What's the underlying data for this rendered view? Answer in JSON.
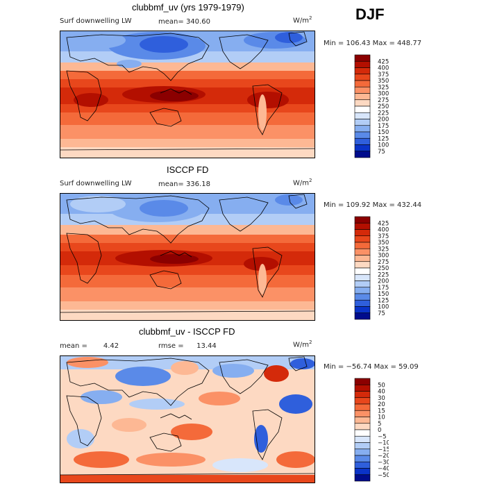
{
  "season": "DJF",
  "panels": [
    {
      "title": "clubbmf_uv (yrs 1979-1979)",
      "variable": "Surf downwelling LW",
      "mean_label": "mean=",
      "mean_value": "340.60",
      "units_base": "W/m",
      "units_exp": "2",
      "minmax": "Min = 106.43 Max = 448.77",
      "colorbar_labels": [
        "425",
        "400",
        "375",
        "350",
        "325",
        "300",
        "275",
        "250",
        "225",
        "200",
        "175",
        "150",
        "125",
        "100",
        "75"
      ],
      "colorbar_colors": [
        "#8b0000",
        "#b30f00",
        "#d42a0a",
        "#e8471c",
        "#f46a3a",
        "#fb9166",
        "#fdb894",
        "#fdd9c2",
        "#ffffff",
        "#d8e6fb",
        "#b2cdf6",
        "#86aef0",
        "#5a8ae8",
        "#2f5fdc",
        "#0a33c8",
        "#000c8c"
      ]
    },
    {
      "title": "ISCCP FD",
      "variable": "Surf downwelling LW",
      "mean_label": "mean=",
      "mean_value": "336.18",
      "units_base": "W/m",
      "units_exp": "2",
      "minmax": "Min = 109.92 Max = 432.44",
      "colorbar_labels": [
        "425",
        "400",
        "375",
        "350",
        "325",
        "300",
        "275",
        "250",
        "225",
        "200",
        "175",
        "150",
        "125",
        "100",
        "75"
      ],
      "colorbar_colors": [
        "#8b0000",
        "#b30f00",
        "#d42a0a",
        "#e8471c",
        "#f46a3a",
        "#fb9166",
        "#fdb894",
        "#fdd9c2",
        "#ffffff",
        "#d8e6fb",
        "#b2cdf6",
        "#86aef0",
        "#5a8ae8",
        "#2f5fdc",
        "#0a33c8",
        "#000c8c"
      ]
    },
    {
      "title": "clubbmf_uv - ISCCP FD",
      "mean_label": "mean =",
      "mean_value": "4.42",
      "rmse_label": "rmse =",
      "rmse_value": "13.44",
      "units_base": "W/m",
      "units_exp": "2",
      "minmax": "Min = −56.74 Max =  59.09",
      "colorbar_labels": [
        "50",
        "40",
        "30",
        "20",
        "15",
        "10",
        "5",
        "0",
        "−5",
        "−10",
        "−15",
        "−20",
        "−30",
        "−40",
        "−50"
      ],
      "colorbar_colors": [
        "#8b0000",
        "#b30f00",
        "#d42a0a",
        "#e8471c",
        "#f46a3a",
        "#fb9166",
        "#fdb894",
        "#fdd9c2",
        "#ffffff",
        "#d8e6fb",
        "#b2cdf6",
        "#86aef0",
        "#5a8ae8",
        "#2f5fdc",
        "#0a33c8",
        "#000c8c"
      ]
    }
  ]
}
